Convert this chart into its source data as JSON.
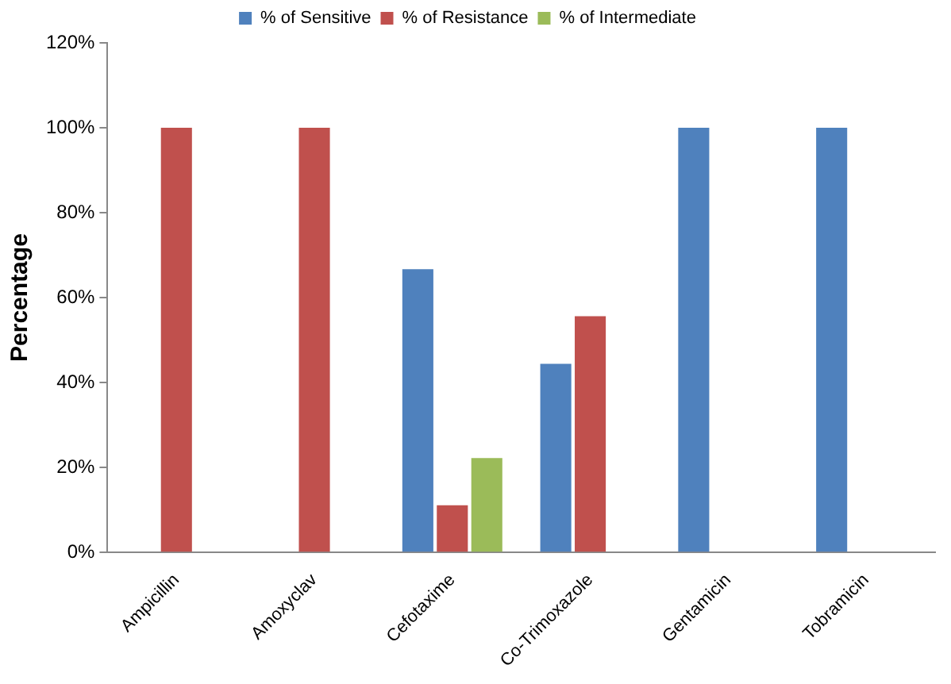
{
  "chart_data": {
    "type": "bar",
    "ylabel": "Percentage",
    "categories": [
      "Ampicillin",
      "Amoxyclav",
      "Cefotaxime",
      "Co-Trimoxazole",
      "Gentamicin",
      "Tobramicin"
    ],
    "series": [
      {
        "name": "% of Sensitive",
        "color": "#4f81bd",
        "values": [
          0,
          0,
          66.7,
          44.4,
          100,
          100
        ]
      },
      {
        "name": "% of Resistance",
        "color": "#c0504d",
        "values": [
          100,
          100,
          11.1,
          55.6,
          0,
          0
        ]
      },
      {
        "name": "% of Intermediate",
        "color": "#9bbb59",
        "values": [
          0,
          0,
          22.2,
          0,
          0,
          0
        ]
      }
    ],
    "ylim": [
      0,
      120
    ],
    "yticks": [
      {
        "value": 0,
        "label": "0%"
      },
      {
        "value": 20,
        "label": "20%"
      },
      {
        "value": 40,
        "label": "40%"
      },
      {
        "value": 60,
        "label": "60%"
      },
      {
        "value": 80,
        "label": "80%"
      },
      {
        "value": 100,
        "label": "100%"
      },
      {
        "value": 120,
        "label": "120%"
      }
    ],
    "grid": false,
    "legend": "top"
  }
}
